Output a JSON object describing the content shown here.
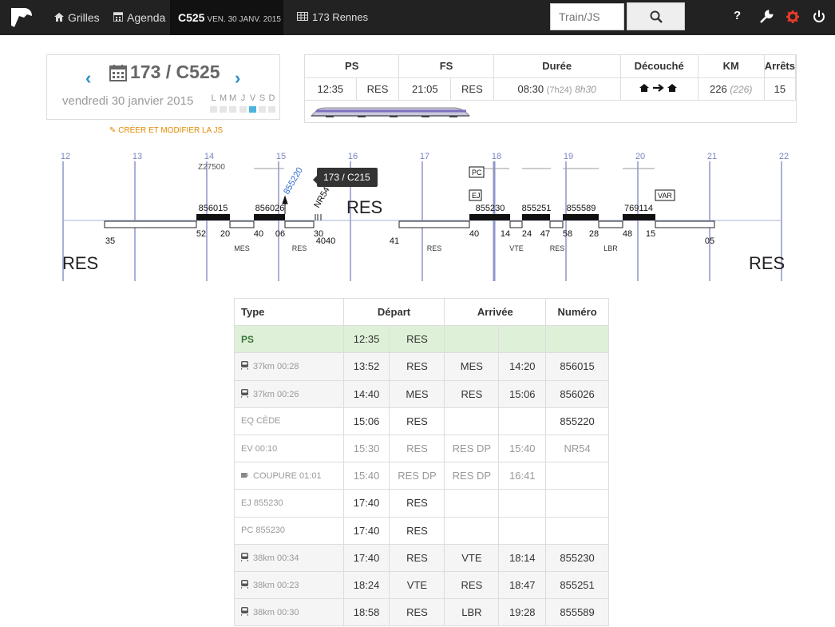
{
  "nav": {
    "items": [
      {
        "label": "Grilles",
        "icon": "home-icon"
      },
      {
        "label": "Agenda",
        "icon": "calendar-icon"
      }
    ],
    "active_code": "C525",
    "active_date": "VEN. 30 JANV. 2015",
    "rennes_label": "173 Rennes",
    "search_placeholder": "Train/JS",
    "help_label": "?"
  },
  "info": {
    "title": "173 / C525",
    "date": "vendredi 30 janvier 2015",
    "days": [
      "L",
      "M",
      "M",
      "J",
      "V",
      "S",
      "D"
    ],
    "active_day_index": 4,
    "js_link": "Créer et modifier la JS"
  },
  "summary": {
    "headers": [
      "PS",
      "FS",
      "Durée",
      "Découché",
      "KM",
      "Arrêts"
    ],
    "ps_time": "12:35",
    "ps_place": "RES",
    "fs_time": "21:05",
    "fs_place": "RES",
    "duree": "08:30",
    "duree_paren": "(7h24)",
    "duree_alt": "8h30",
    "km": "226",
    "km_paren": "(226)",
    "arrets": "15"
  },
  "timeline": {
    "hours": [
      "12",
      "13",
      "14",
      "15",
      "16",
      "17",
      "18",
      "19",
      "20",
      "21",
      "22"
    ],
    "res_left": "RES",
    "res_right": "RES",
    "res_mid": "RES",
    "z_label": "Z27500",
    "tooltip": "173 / C215",
    "blue_label": "855220",
    "nr_label": "NR54",
    "tags": [
      "PC",
      "EJ",
      "VAR"
    ],
    "train_numbers": [
      "856015",
      "856026",
      "855230",
      "855251",
      "855589",
      "769114"
    ],
    "minute_labels": [
      "35",
      "52",
      "20",
      "40",
      "06",
      "30",
      "4040",
      "41",
      "40",
      "14",
      "24",
      "47",
      "58",
      "28",
      "48",
      "15",
      "05"
    ],
    "place_labels": [
      "MES",
      "RES",
      "RES",
      "VTE",
      "RES",
      "LBR"
    ]
  },
  "detail": {
    "headers": [
      "Type",
      "Départ",
      "Arrivée",
      "Numéro"
    ],
    "rows": [
      {
        "type": "PS",
        "dep_t": "12:35",
        "dep_p": "RES",
        "arr_p": "",
        "arr_t": "",
        "num": ""
      },
      {
        "type": "37km 00:28",
        "dep_t": "13:52",
        "dep_p": "RES",
        "arr_p": "MES",
        "arr_t": "14:20",
        "num": "856015"
      },
      {
        "type": "37km 00:26",
        "dep_t": "14:40",
        "dep_p": "MES",
        "arr_p": "RES",
        "arr_t": "15:06",
        "num": "856026"
      },
      {
        "type": "EQ CÈDE",
        "dep_t": "15:06",
        "dep_p": "RES",
        "arr_p": "",
        "arr_t": "",
        "num": "855220"
      },
      {
        "type": "EV 00:10",
        "dep_t": "15:30",
        "dep_p": "RES",
        "arr_p": "RES DP",
        "arr_t": "15:40",
        "num": "NR54"
      },
      {
        "type": "COUPURE 01:01",
        "dep_t": "15:40",
        "dep_p": "RES DP",
        "arr_p": "RES DP",
        "arr_t": "16:41",
        "num": ""
      },
      {
        "type": "EJ 855230",
        "dep_t": "17:40",
        "dep_p": "RES",
        "arr_p": "",
        "arr_t": "",
        "num": ""
      },
      {
        "type": "PC 855230",
        "dep_t": "17:40",
        "dep_p": "RES",
        "arr_p": "",
        "arr_t": "",
        "num": ""
      },
      {
        "type": "38km 00:34",
        "dep_t": "17:40",
        "dep_p": "RES",
        "arr_p": "VTE",
        "arr_t": "18:14",
        "num": "855230"
      },
      {
        "type": "38km 00:23",
        "dep_t": "18:24",
        "dep_p": "VTE",
        "arr_p": "RES",
        "arr_t": "18:47",
        "num": "855251"
      },
      {
        "type": "38km 00:30",
        "dep_t": "18:58",
        "dep_p": "RES",
        "arr_p": "LBR",
        "arr_t": "19:28",
        "num": "855589"
      }
    ]
  }
}
